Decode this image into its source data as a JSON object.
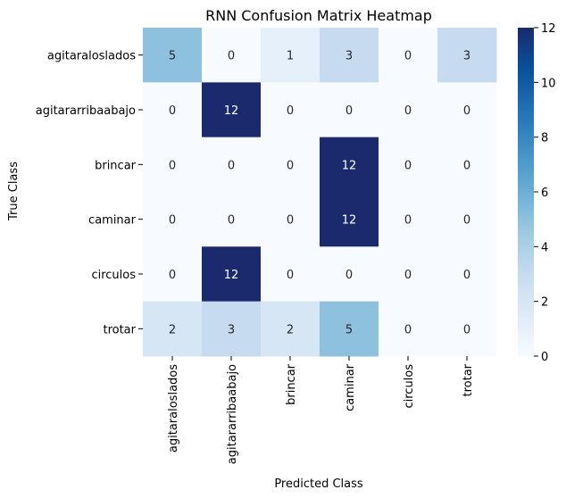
{
  "chart_data": {
    "type": "heatmap",
    "title": "RNN Confusion Matrix Heatmap",
    "xlabel": "Predicted Class",
    "ylabel": "True Class",
    "x_categories": [
      "agitaraloslados",
      "agitararribaabajo",
      "brincar",
      "caminar",
      "circulos",
      "trotar"
    ],
    "y_categories": [
      "agitaraloslados",
      "agitararribaabajo",
      "brincar",
      "caminar",
      "circulos",
      "trotar"
    ],
    "values": [
      [
        5,
        0,
        1,
        3,
        0,
        3
      ],
      [
        0,
        12,
        0,
        0,
        0,
        0
      ],
      [
        0,
        0,
        0,
        12,
        0,
        0
      ],
      [
        0,
        0,
        0,
        12,
        0,
        0
      ],
      [
        0,
        12,
        0,
        0,
        0,
        0
      ],
      [
        2,
        3,
        2,
        5,
        0,
        0
      ]
    ],
    "colorbar": {
      "min": 0,
      "max": 12,
      "ticks": [
        0,
        2,
        4,
        6,
        8,
        10,
        12
      ]
    },
    "colormap": "Blues",
    "annotations": true
  }
}
